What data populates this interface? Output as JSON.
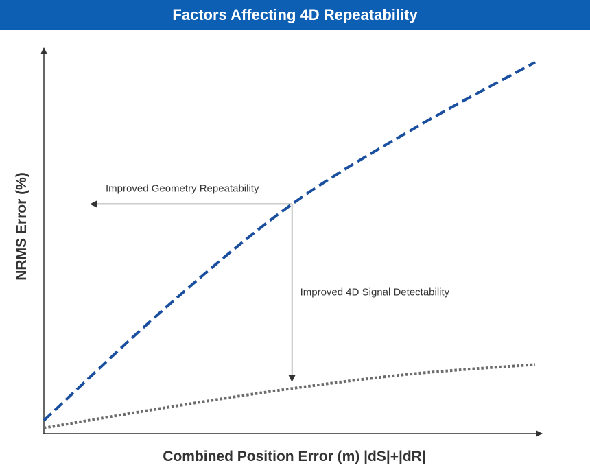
{
  "chart_data": {
    "type": "line",
    "title": "Factors Affecting 4D Repeatability",
    "xlabel": "Combined Position Error (m) |dS|+|dR|",
    "ylabel": "NRMS Error (%)",
    "xticks": false,
    "yticks": false,
    "grid": false,
    "legend": "none",
    "xlim": [
      0,
      100
    ],
    "ylim": [
      0,
      100
    ],
    "series": [
      {
        "style": "dashed",
        "color": "#1a4fa0",
        "x": [
          0,
          25,
          50,
          75,
          100
        ],
        "y": [
          3.5,
          34,
          61,
          81.5,
          99.5
        ]
      },
      {
        "style": "dotted",
        "color": "#6b6b6b",
        "x": [
          0,
          25,
          50,
          75,
          100
        ],
        "y": [
          1.5,
          7,
          12,
          16,
          18.5
        ]
      }
    ],
    "annotations": [
      {
        "text": "Improved Geometry Repeatability",
        "direction": "left"
      },
      {
        "text": "Improved 4D Signal Detectability",
        "direction": "down"
      }
    ],
    "annotation_point": {
      "x": 50.5,
      "y": 61.5
    },
    "arrows": {
      "horizontal_to_x": 9.5,
      "vertical_to_y": 14
    }
  }
}
